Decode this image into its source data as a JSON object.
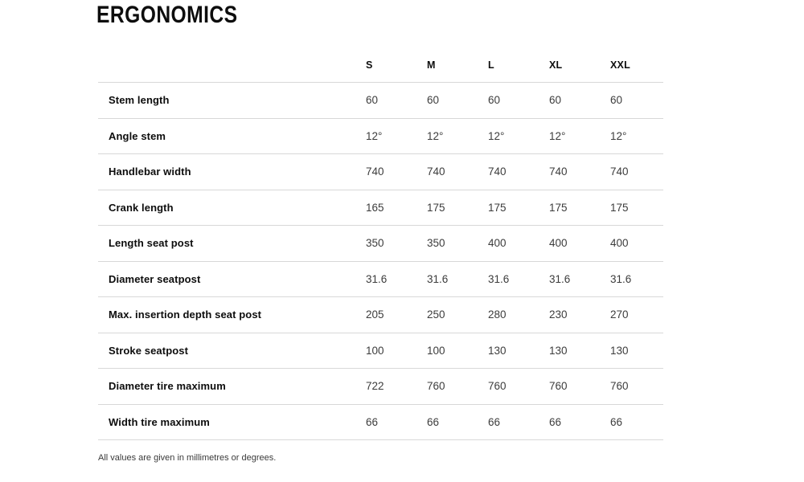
{
  "title": "ERGONOMICS",
  "table": {
    "columns": [
      "S",
      "M",
      "L",
      "XL",
      "XXL"
    ],
    "rows": [
      {
        "label": "Stem length",
        "values": [
          "60",
          "60",
          "60",
          "60",
          "60"
        ]
      },
      {
        "label": "Angle stem",
        "values": [
          "12°",
          "12°",
          "12°",
          "12°",
          "12°"
        ]
      },
      {
        "label": "Handlebar width",
        "values": [
          "740",
          "740",
          "740",
          "740",
          "740"
        ]
      },
      {
        "label": "Crank length",
        "values": [
          "165",
          "175",
          "175",
          "175",
          "175"
        ]
      },
      {
        "label": "Length seat post",
        "values": [
          "350",
          "350",
          "400",
          "400",
          "400"
        ]
      },
      {
        "label": "Diameter seatpost",
        "values": [
          "31.6",
          "31.6",
          "31.6",
          "31.6",
          "31.6"
        ]
      },
      {
        "label": "Max. insertion depth seat post",
        "values": [
          "205",
          "250",
          "280",
          "230",
          "270"
        ]
      },
      {
        "label": "Stroke seatpost",
        "values": [
          "100",
          "100",
          "130",
          "130",
          "130"
        ]
      },
      {
        "label": "Diameter tire maximum",
        "values": [
          "722",
          "760",
          "760",
          "760",
          "760"
        ]
      },
      {
        "label": "Width tire maximum",
        "values": [
          "66",
          "66",
          "66",
          "66",
          "66"
        ]
      }
    ]
  },
  "footnote": "All values are given in millimetres or degrees.",
  "colors": {
    "text_primary": "#0d0d0d",
    "text_value": "#3c3c3c",
    "divider": "#d8d8d8",
    "background": "#ffffff"
  }
}
